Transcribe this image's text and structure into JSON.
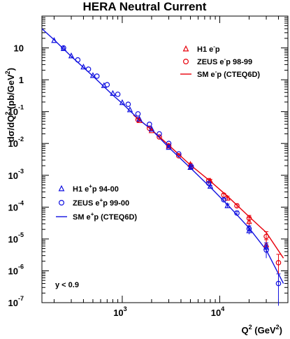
{
  "chart_data": {
    "type": "scatter",
    "title": "HERA Neutral Current",
    "xlabel": {
      "base": "Q",
      "sup": "2",
      "rest": " (GeV",
      "sup2": "2",
      "close": ")"
    },
    "ylabel": {
      "part1": "dσ/dQ",
      "sup": "2",
      "part2": " (pb/GeV",
      "sup2": "2",
      "close": ")"
    },
    "xscale": "log",
    "yscale": "log",
    "xlim": [
      150,
      50000
    ],
    "ylim": [
      1e-07,
      100
    ],
    "x_ticks": [
      {
        "base": "10",
        "exp": "3"
      },
      {
        "base": "10",
        "exp": "4"
      }
    ],
    "y_ticks": [
      {
        "base": "10",
        "exp": ""
      },
      {
        "base": "1",
        "exp": ""
      },
      {
        "base": "10",
        "exp": "-1"
      },
      {
        "base": "10",
        "exp": "-2"
      },
      {
        "base": "10",
        "exp": "-3"
      },
      {
        "base": "10",
        "exp": "-4"
      },
      {
        "base": "10",
        "exp": "-5"
      },
      {
        "base": "10",
        "exp": "-6"
      },
      {
        "base": "10",
        "exp": "-7"
      }
    ],
    "annotation": "y < 0.9",
    "series": [
      {
        "name": "H1 e-p",
        "kind": "data",
        "marker": "triangle",
        "color": "#e8000b",
        "x": [
          1500,
          2000,
          3000,
          5000,
          8000,
          12000,
          20000,
          30000
        ],
        "y": [
          0.052,
          0.025,
          0.0083,
          0.0022,
          0.00066,
          0.00019,
          3.5e-05,
          6.5e-06
        ],
        "yerr": [
          0.003,
          0.0015,
          0.0006,
          0.0002,
          8e-05,
          3e-05,
          1.2e-05,
          3e-06
        ]
      },
      {
        "name": "ZEUS e-p 98-99",
        "kind": "data",
        "marker": "circle",
        "color": "#e8000b",
        "x": [
          1450,
          1900,
          2400,
          3000,
          3800,
          5100,
          7700,
          11000,
          15000,
          20000,
          30000,
          40000
        ],
        "y": [
          0.056,
          0.03,
          0.016,
          0.0084,
          0.0041,
          0.0018,
          0.00068,
          0.00024,
          0.00011,
          4.5e-05,
          1.2e-05,
          1.8e-06
        ],
        "yerr": [
          0.003,
          0.002,
          0.001,
          0.0006,
          0.0003,
          0.00015,
          6e-05,
          2.5e-05,
          1.5e-05,
          1e-05,
          5e-06,
          1.5e-06
        ]
      },
      {
        "name": "SM e-p (CTEQ6D)",
        "kind": "curve",
        "color": "#e8000b",
        "x": [
          1300,
          2000,
          3000,
          5000,
          8000,
          12000,
          20000,
          30000,
          45000
        ],
        "y": [
          0.078,
          0.027,
          0.0088,
          0.0021,
          0.00065,
          0.00022,
          5e-05,
          1.6e-05,
          2.5e-06
        ]
      },
      {
        "name": "H1 e+p 94-00",
        "kind": "data",
        "marker": "triangle",
        "color": "#1010e0",
        "x": [
          200,
          250,
          300,
          400,
          500,
          650,
          800,
          1000,
          1200,
          1500,
          2000,
          3000,
          5000,
          8000,
          12000,
          20000,
          30000
        ],
        "y": [
          17,
          9.5,
          5.6,
          2.5,
          1.35,
          0.65,
          0.37,
          0.19,
          0.113,
          0.058,
          0.028,
          0.0075,
          0.00175,
          0.00045,
          0.00011,
          1.8e-05,
          5.5e-06
        ],
        "yerr": [
          0.5,
          0.3,
          0.2,
          0.08,
          0.04,
          0.02,
          0.012,
          0.006,
          0.004,
          0.002,
          0.0012,
          0.0004,
          0.0001,
          3e-05,
          1.5e-05,
          4e-06,
          2e-06
        ]
      },
      {
        "name": "ZEUS e+p 99-00",
        "kind": "data",
        "marker": "circle",
        "color": "#1010e0",
        "x": [
          250,
          350,
          450,
          550,
          700,
          900,
          1150,
          1450,
          1900,
          2400,
          3000,
          3800,
          5100,
          7700,
          11000,
          15000,
          20000,
          30000,
          40000
        ],
        "y": [
          10,
          4.2,
          2.15,
          1.3,
          0.7,
          0.35,
          0.17,
          0.085,
          0.04,
          0.02,
          0.01,
          0.0047,
          0.0019,
          0.00056,
          0.00017,
          6.5e-05,
          2.1e-05,
          4.5e-06,
          4e-07
        ],
        "yerr": [
          0.3,
          0.12,
          0.06,
          0.04,
          0.02,
          0.01,
          0.005,
          0.003,
          0.0015,
          0.0008,
          0.0004,
          0.0002,
          0.0001,
          4e-05,
          2e-05,
          1e-05,
          5e-06,
          2e-06,
          4e-07
        ]
      },
      {
        "name": "SM e+p (CTEQ6D)",
        "kind": "curve",
        "color": "#1010e0",
        "x": [
          150,
          200,
          300,
          500,
          800,
          1000,
          1500,
          2000,
          3000,
          5000,
          8000,
          12000,
          20000,
          30000,
          45000
        ],
        "y": [
          40,
          18,
          5.4,
          1.3,
          0.33,
          0.18,
          0.055,
          0.027,
          0.0075,
          0.0017,
          0.00042,
          0.00012,
          2.2e-05,
          4.5e-06,
          4e-07
        ]
      }
    ],
    "legend_upper": [
      {
        "marker": "triangle",
        "color": "#e8000b",
        "label": "H1 e",
        "sup": "-",
        "rest": "p"
      },
      {
        "marker": "circle",
        "color": "#e8000b",
        "label": "ZEUS e",
        "sup": "-",
        "rest": "p 98-99"
      },
      {
        "marker": "line",
        "color": "#e8000b",
        "label": "SM e",
        "sup": "-",
        "rest": "p (CTEQ6D)"
      }
    ],
    "legend_lower": [
      {
        "marker": "triangle",
        "color": "#1010e0",
        "label": "H1 e",
        "sup": "+",
        "rest": "p 94-00"
      },
      {
        "marker": "circle",
        "color": "#1010e0",
        "label": "ZEUS e",
        "sup": "+",
        "rest": "p 99-00"
      },
      {
        "marker": "line",
        "color": "#1010e0",
        "label": "SM e",
        "sup": "+",
        "rest": "p (CTEQ6D)"
      }
    ]
  }
}
